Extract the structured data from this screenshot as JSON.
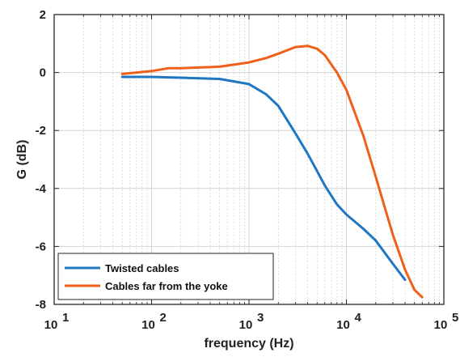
{
  "chart_data": {
    "type": "line",
    "xlabel": "frequency (Hz)",
    "ylabel": "G (dB)",
    "xscale": "log",
    "xlim": [
      10,
      100000
    ],
    "ylim": [
      -8,
      2
    ],
    "grid": true,
    "legend_position": "bottom-left",
    "x_tick_labels": [
      {
        "base": "10",
        "exp": "1"
      },
      {
        "base": "10",
        "exp": "2"
      },
      {
        "base": "10",
        "exp": "3"
      },
      {
        "base": "10",
        "exp": "4"
      },
      {
        "base": "10",
        "exp": "5"
      }
    ],
    "y_tick_labels": [
      "2",
      "0",
      "-2",
      "-4",
      "-6",
      "-8"
    ],
    "series": [
      {
        "name": "Twisted cables",
        "color": "#1f77c4",
        "x": [
          50,
          100,
          200,
          500,
          1000,
          1500,
          2000,
          3000,
          4000,
          5000,
          6000,
          8000,
          10000,
          15000,
          20000,
          30000,
          40000
        ],
        "y": [
          -0.15,
          -0.15,
          -0.18,
          -0.22,
          -0.4,
          -0.75,
          -1.15,
          -2.1,
          -2.8,
          -3.4,
          -3.9,
          -4.55,
          -4.9,
          -5.4,
          -5.8,
          -6.6,
          -7.15
        ]
      },
      {
        "name": "Cables far from the yoke",
        "color": "#f0601a",
        "x": [
          50,
          100,
          150,
          200,
          500,
          1000,
          1500,
          2000,
          3000,
          4000,
          5000,
          6000,
          8000,
          10000,
          15000,
          20000,
          30000,
          40000,
          50000,
          60000
        ],
        "y": [
          -0.05,
          0.05,
          0.15,
          0.15,
          0.2,
          0.35,
          0.5,
          0.65,
          0.88,
          0.92,
          0.82,
          0.6,
          0.0,
          -0.6,
          -2.2,
          -3.6,
          -5.6,
          -6.8,
          -7.5,
          -7.75
        ]
      }
    ]
  }
}
